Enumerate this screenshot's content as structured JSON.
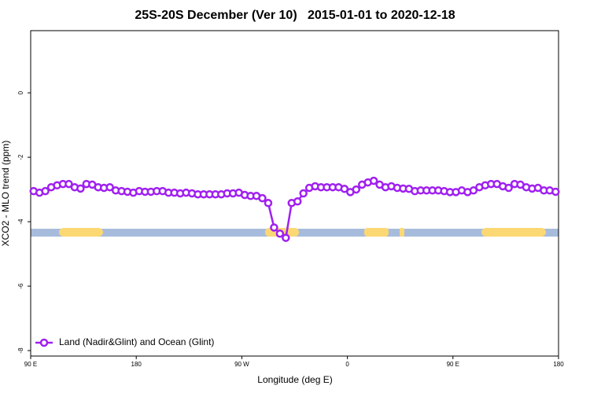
{
  "chart_data": {
    "type": "line",
    "title": "25S-20S December (Ver 10)   2015-01-01 to 2020-12-18",
    "x_label": "Longitude (deg E)",
    "y_label": "XCO2 - MLO trend (ppm)",
    "x": [
      92.5,
      97.5,
      102.5,
      107.5,
      112.5,
      117.5,
      122.5,
      127.5,
      132.5,
      137.5,
      142.5,
      147.5,
      152.5,
      157.5,
      162.5,
      167.5,
      172.5,
      177.5,
      182.5,
      187.5,
      192.5,
      197.5,
      202.5,
      207.5,
      212.5,
      217.5,
      222.5,
      227.5,
      232.5,
      237.5,
      242.5,
      247.5,
      252.5,
      257.5,
      262.5,
      267.5,
      272.5,
      277.5,
      282.5,
      287.5,
      292.5,
      297.5,
      302.5,
      307.5,
      312.5,
      317.5,
      322.5,
      327.5,
      332.5,
      337.5,
      342.5,
      347.5,
      352.5,
      357.5,
      362.5,
      367.5,
      372.5,
      377.5,
      382.5,
      387.5,
      392.5,
      397.5,
      402.5,
      407.5,
      412.5,
      417.5,
      422.5,
      427.5,
      432.5,
      437.5,
      442.5,
      447.5,
      452.5,
      457.5,
      462.5,
      467.5,
      472.5,
      477.5,
      482.5,
      487.5,
      492.5,
      497.5,
      502.5,
      507.5,
      512.5,
      517.5,
      522.5,
      527.5,
      532.5,
      537.5
    ],
    "series": [
      {
        "name": "Land (Nadir&Glint) and Ocean (Glint)",
        "color": "#a020f0",
        "values": [
          -3.05,
          -3.1,
          -3.05,
          -2.93,
          -2.87,
          -2.83,
          -2.83,
          -2.93,
          -2.97,
          -2.83,
          -2.85,
          -2.93,
          -2.95,
          -2.93,
          -3.03,
          -3.05,
          -3.07,
          -3.1,
          -3.05,
          -3.07,
          -3.07,
          -3.05,
          -3.05,
          -3.1,
          -3.1,
          -3.12,
          -3.1,
          -3.12,
          -3.15,
          -3.15,
          -3.15,
          -3.15,
          -3.15,
          -3.12,
          -3.12,
          -3.1,
          -3.17,
          -3.2,
          -3.2,
          -3.27,
          -3.42,
          -4.18,
          -4.37,
          -4.5,
          -3.42,
          -3.37,
          -3.12,
          -2.95,
          -2.9,
          -2.93,
          -2.93,
          -2.93,
          -2.93,
          -2.98,
          -3.08,
          -3.0,
          -2.85,
          -2.78,
          -2.73,
          -2.85,
          -2.93,
          -2.9,
          -2.95,
          -2.97,
          -2.98,
          -3.05,
          -3.03,
          -3.03,
          -3.03,
          -3.03,
          -3.05,
          -3.08,
          -3.08,
          -3.03,
          -3.08,
          -3.03,
          -2.93,
          -2.87,
          -2.83,
          -2.83,
          -2.9,
          -2.95,
          -2.83,
          -2.85,
          -2.93,
          -2.97,
          -2.95,
          -3.03,
          -3.03,
          -3.07
        ]
      }
    ],
    "xlim": [
      90,
      540
    ],
    "xticks": [
      {
        "value": 90,
        "label": "90 E"
      },
      180,
      {
        "value": 270,
        "label": "90 W"
      },
      {
        "value": 360,
        "label": "0"
      },
      {
        "value": 450,
        "label": "90 E"
      },
      {
        "value": 540,
        "label": "180"
      }
    ],
    "ylim": [
      -8.17,
      1.93
    ],
    "yticks": [
      0,
      -2,
      -4,
      -6,
      -8
    ],
    "grid": false,
    "legend": "bottom-left"
  }
}
